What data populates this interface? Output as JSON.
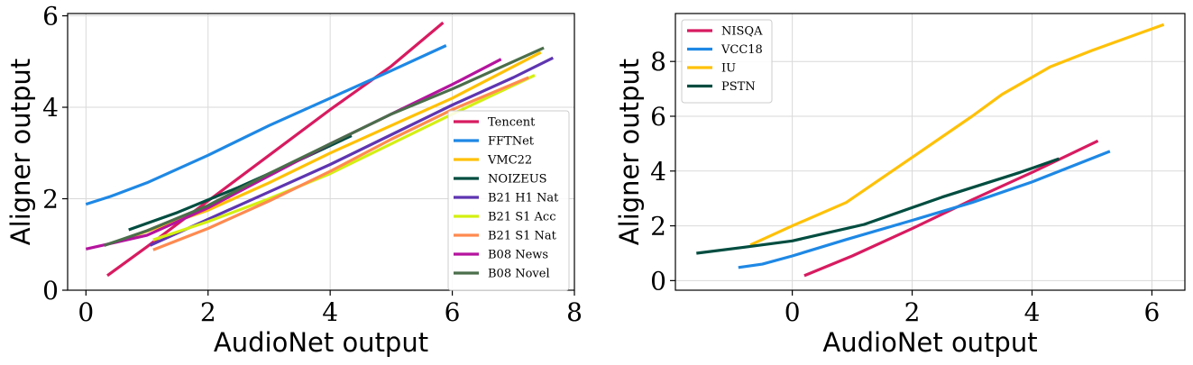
{
  "chart_data": [
    {
      "type": "line",
      "xlabel": "AudioNet output",
      "ylabel": "Aligner output",
      "xlim": [
        -0.3,
        8.0
      ],
      "ylim": [
        0,
        6.05
      ],
      "xticks": [
        0,
        2,
        4,
        6,
        8
      ],
      "yticks": [
        0,
        2,
        4,
        6
      ],
      "grid": true,
      "legend_position": "lower-right",
      "series": [
        {
          "name": "Tencent",
          "color": "#d81b60",
          "points": [
            [
              0.35,
              0.32
            ],
            [
              1.0,
              0.95
            ],
            [
              2.0,
              1.95
            ],
            [
              3.0,
              2.95
            ],
            [
              4.0,
              3.95
            ],
            [
              5.0,
              4.9
            ],
            [
              5.85,
              5.85
            ]
          ]
        },
        {
          "name": "FFTNet",
          "color": "#1e88e5",
          "points": [
            [
              0.0,
              1.88
            ],
            [
              0.4,
              2.05
            ],
            [
              1.0,
              2.35
            ],
            [
              2.0,
              2.95
            ],
            [
              3.0,
              3.6
            ],
            [
              4.0,
              4.2
            ],
            [
              5.0,
              4.8
            ],
            [
              5.9,
              5.35
            ]
          ]
        },
        {
          "name": "VMC22",
          "color": "#ffc107",
          "points": [
            [
              0.7,
              1.15
            ],
            [
              2.0,
              1.75
            ],
            [
              3.0,
              2.35
            ],
            [
              4.0,
              3.0
            ],
            [
              5.0,
              3.6
            ],
            [
              6.0,
              4.2
            ],
            [
              7.45,
              5.2
            ]
          ]
        },
        {
          "name": "NOIZEUS",
          "color": "#004d40",
          "points": [
            [
              0.7,
              1.32
            ],
            [
              1.5,
              1.7
            ],
            [
              2.5,
              2.25
            ],
            [
              3.5,
              2.85
            ],
            [
              4.35,
              3.38
            ]
          ]
        },
        {
          "name": "B21 H1 Nat",
          "color": "#5e35b1",
          "points": [
            [
              1.05,
              0.98
            ],
            [
              2.0,
              1.55
            ],
            [
              3.0,
              2.15
            ],
            [
              4.0,
              2.75
            ],
            [
              5.0,
              3.4
            ],
            [
              6.0,
              4.05
            ],
            [
              7.0,
              4.65
            ],
            [
              7.65,
              5.08
            ]
          ]
        },
        {
          "name": "B21 S1 Acc",
          "color": "#d4f011",
          "points": [
            [
              1.1,
              1.1
            ],
            [
              2.0,
              1.5
            ],
            [
              3.0,
              2.0
            ],
            [
              4.0,
              2.55
            ],
            [
              5.0,
              3.2
            ],
            [
              6.0,
              3.85
            ],
            [
              7.35,
              4.7
            ]
          ]
        },
        {
          "name": "B21 S1 Nat",
          "color": "#ff8a50",
          "points": [
            [
              1.1,
              0.88
            ],
            [
              2.0,
              1.35
            ],
            [
              3.0,
              1.95
            ],
            [
              4.0,
              2.6
            ],
            [
              5.0,
              3.3
            ],
            [
              6.0,
              3.95
            ],
            [
              7.25,
              4.65
            ]
          ]
        },
        {
          "name": "B08 News",
          "color": "#b5139e",
          "points": [
            [
              0.0,
              0.9
            ],
            [
              1.0,
              1.2
            ],
            [
              2.0,
              1.8
            ],
            [
              3.0,
              2.5
            ],
            [
              4.0,
              3.2
            ],
            [
              5.0,
              3.85
            ],
            [
              6.0,
              4.5
            ],
            [
              6.8,
              5.05
            ]
          ]
        },
        {
          "name": "B08 Novel",
          "color": "#4b6e4b",
          "points": [
            [
              0.3,
              0.98
            ],
            [
              1.0,
              1.3
            ],
            [
              2.0,
              1.85
            ],
            [
              3.0,
              2.55
            ],
            [
              4.0,
              3.2
            ],
            [
              5.0,
              3.85
            ],
            [
              6.0,
              4.4
            ],
            [
              7.5,
              5.3
            ]
          ]
        }
      ]
    },
    {
      "type": "line",
      "xlabel": "AudioNet output",
      "ylabel": "Aligner output",
      "xlim": [
        -1.95,
        6.55
      ],
      "ylim": [
        -0.35,
        9.75
      ],
      "xticks": [
        0,
        2,
        4,
        6
      ],
      "yticks": [
        0,
        2,
        4,
        6,
        8
      ],
      "grid": true,
      "legend_position": "top-left",
      "series": [
        {
          "name": "NISQA",
          "color": "#d81b60",
          "points": [
            [
              0.2,
              0.18
            ],
            [
              1.0,
              0.9
            ],
            [
              2.0,
              1.9
            ],
            [
              3.0,
              2.95
            ],
            [
              4.0,
              3.95
            ],
            [
              5.1,
              5.1
            ]
          ]
        },
        {
          "name": "VCC18",
          "color": "#1e88e5",
          "points": [
            [
              -0.9,
              0.48
            ],
            [
              -0.5,
              0.6
            ],
            [
              0.0,
              0.9
            ],
            [
              0.9,
              1.5
            ],
            [
              2.0,
              2.2
            ],
            [
              3.0,
              2.85
            ],
            [
              4.0,
              3.6
            ],
            [
              5.3,
              4.72
            ]
          ]
        },
        {
          "name": "IU",
          "color": "#ffc107",
          "points": [
            [
              -0.7,
              1.3
            ],
            [
              0.0,
              2.0
            ],
            [
              0.9,
              2.85
            ],
            [
              2.0,
              4.5
            ],
            [
              3.0,
              6.0
            ],
            [
              3.5,
              6.8
            ],
            [
              4.3,
              7.8
            ],
            [
              5.0,
              8.4
            ],
            [
              6.2,
              9.35
            ]
          ]
        },
        {
          "name": "PSTN",
          "color": "#004d40",
          "points": [
            [
              -1.6,
              1.0
            ],
            [
              -0.8,
              1.22
            ],
            [
              0.0,
              1.45
            ],
            [
              1.2,
              2.05
            ],
            [
              2.5,
              3.05
            ],
            [
              3.8,
              3.95
            ],
            [
              4.45,
              4.45
            ]
          ]
        }
      ]
    }
  ]
}
